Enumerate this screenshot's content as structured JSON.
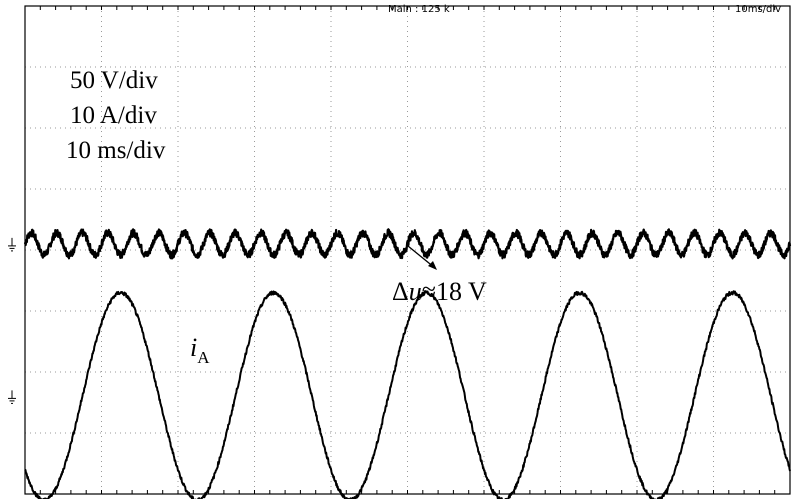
{
  "header": {
    "main_label": "Main : 125 k",
    "timebase_label": "10ms/div"
  },
  "scale_labels": [
    "50 V/div",
    "10 A/div",
    "10 ms/div"
  ],
  "annotations": {
    "delta_u_symbol": "Δ",
    "delta_u_var": "u",
    "delta_u_value": "≈18 V",
    "current_var": "i",
    "current_sub": "A"
  },
  "colors": {
    "trace": "#000000",
    "grid": "#9a9a9a",
    "background": "#ffffff"
  },
  "chart_data": {
    "type": "line",
    "title": "",
    "xlabel": "",
    "ylabel": "",
    "x_unit": "ms",
    "xlim": [
      0,
      100
    ],
    "grid": true,
    "grid_divisions": {
      "x": 10,
      "y": 8
    },
    "series": [
      {
        "name": "",
        "kind": "dc-voltage-ripple",
        "volts_per_div": 50,
        "screen_level_div": 4.1,
        "ripple_pp_V": 18,
        "ripple_freq_Hz": 300,
        "noise_V": 3
      },
      {
        "name": "i_A",
        "kind": "phase-current",
        "amps_per_div": 10,
        "screen_center_div": 1.6,
        "amplitude_A": 17,
        "freq_Hz": 50,
        "first_peak_ms": 12.5
      }
    ]
  }
}
